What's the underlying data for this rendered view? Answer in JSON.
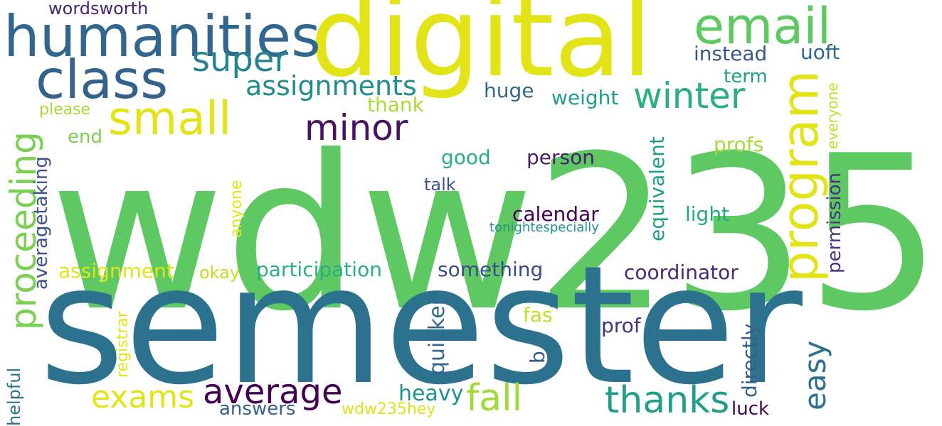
{
  "words": [
    {
      "text": "wdw235",
      "color": "#5ec962",
      "rotate": false
    },
    {
      "text": "semester",
      "color": "#2c728e",
      "rotate": false
    },
    {
      "text": "digital",
      "color": "#e2e418",
      "rotate": false
    },
    {
      "text": "humanities",
      "color": "#31668e",
      "rotate": false
    },
    {
      "text": "class",
      "color": "#33638d",
      "rotate": false
    },
    {
      "text": "email",
      "color": "#5ec962",
      "rotate": false
    },
    {
      "text": "program",
      "color": "#e2e418",
      "rotate": true
    },
    {
      "text": "small",
      "color": "#e2e418",
      "rotate": false
    },
    {
      "text": "super",
      "color": "#25858e",
      "rotate": false
    },
    {
      "text": "assignments",
      "color": "#228d8d",
      "rotate": false
    },
    {
      "text": "winter",
      "color": "#2ab07f",
      "rotate": false
    },
    {
      "text": "minor",
      "color": "#471365",
      "rotate": false
    },
    {
      "text": "proceeding",
      "color": "#7ad151",
      "rotate": true
    },
    {
      "text": "instead",
      "color": "#39568c",
      "rotate": false
    },
    {
      "text": "uoft",
      "color": "#31668e",
      "rotate": false
    },
    {
      "text": "wordsworth",
      "color": "#482576",
      "rotate": false
    },
    {
      "text": "term",
      "color": "#1fa188",
      "rotate": false
    },
    {
      "text": "huge",
      "color": "#31688e",
      "rotate": false
    },
    {
      "text": "weight",
      "color": "#1f9e89",
      "rotate": false
    },
    {
      "text": "thank",
      "color": "#a8db34",
      "rotate": false
    },
    {
      "text": "please",
      "color": "#a5db36",
      "rotate": false
    },
    {
      "text": "everyone",
      "color": "#c2df23",
      "rotate": true
    },
    {
      "text": "end",
      "color": "#7ad151",
      "rotate": false
    },
    {
      "text": "averagetaking",
      "color": "#3b528b",
      "rotate": true
    },
    {
      "text": "profs",
      "color": "#a5db36",
      "rotate": false
    },
    {
      "text": "good",
      "color": "#2ab07f",
      "rotate": false
    },
    {
      "text": "person",
      "color": "#481f70",
      "rotate": false
    },
    {
      "text": "talk",
      "color": "#3b528b",
      "rotate": false
    },
    {
      "text": "equivalent",
      "color": "#1f9e89",
      "rotate": true
    },
    {
      "text": "permission",
      "color": "#46337e",
      "rotate": true
    },
    {
      "text": "anyone",
      "color": "#e2e418",
      "rotate": true
    },
    {
      "text": "calendar",
      "color": "#440154",
      "rotate": false
    },
    {
      "text": "light",
      "color": "#22a884",
      "rotate": false
    },
    {
      "text": "tonightespecially",
      "color": "#21918c",
      "rotate": false
    },
    {
      "text": "assignment",
      "color": "#e2e418",
      "rotate": false
    },
    {
      "text": "participation",
      "color": "#2ab07f",
      "rotate": false
    },
    {
      "text": "something",
      "color": "#3e4989",
      "rotate": false
    },
    {
      "text": "coordinator",
      "color": "#482878",
      "rotate": false
    },
    {
      "text": "okay",
      "color": "#c2df23",
      "rotate": false
    },
    {
      "text": "registrar",
      "color": "#e2e418",
      "rotate": true
    },
    {
      "text": "quicker",
      "color": "#31688e",
      "rotate": true
    },
    {
      "text": "fas",
      "color": "#c2df23",
      "rotate": false
    },
    {
      "text": "prof",
      "color": "#46337e",
      "rotate": false
    },
    {
      "text": "directly",
      "color": "#365c8d",
      "rotate": true
    },
    {
      "text": "easy",
      "color": "#2c728e",
      "rotate": true
    },
    {
      "text": "b",
      "color": "#39568c",
      "rotate": true
    },
    {
      "text": "helpful",
      "color": "#2c728e",
      "rotate": true
    },
    {
      "text": "exams",
      "color": "#e2e418",
      "rotate": false
    },
    {
      "text": "average",
      "color": "#440154",
      "rotate": false
    },
    {
      "text": "fall",
      "color": "#a0da39",
      "rotate": false
    },
    {
      "text": "thanks",
      "color": "#1f9e89",
      "rotate": false
    },
    {
      "text": "heavy",
      "color": "#20928c",
      "rotate": false
    },
    {
      "text": "answers",
      "color": "#34618d",
      "rotate": false
    },
    {
      "text": "wdw235hey",
      "color": "#dde318",
      "rotate": false
    },
    {
      "text": "luck",
      "color": "#440154",
      "rotate": false
    }
  ]
}
